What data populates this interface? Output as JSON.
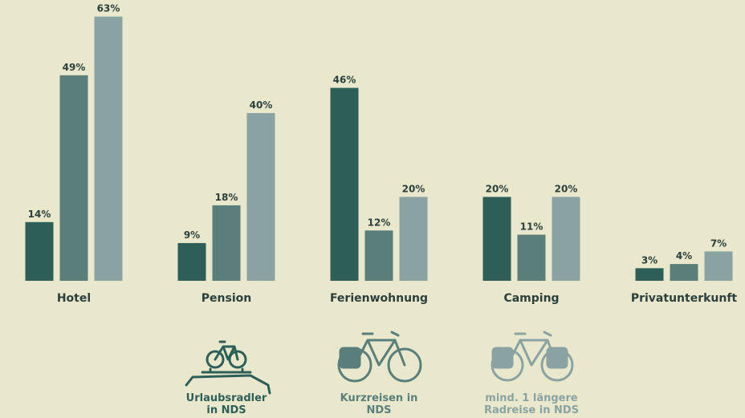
{
  "chart_data": {
    "type": "bar",
    "categories": [
      "Hotel",
      "Pension",
      "Ferienwohnung",
      "Camping",
      "Privatunterkunft"
    ],
    "series": [
      {
        "name": "Urlaubsradler in NDS",
        "color": "#2d5f58",
        "values": [
          14,
          9,
          46,
          20,
          3
        ],
        "value_labels": [
          "14%",
          "9%",
          "46%",
          "20%",
          "3%"
        ]
      },
      {
        "name": "Kurzreisen in NDS",
        "color": "#5a7f7b",
        "values": [
          49,
          18,
          12,
          11,
          4
        ],
        "value_labels": [
          "49%",
          "18%",
          "12%",
          "11%",
          "4%"
        ]
      },
      {
        "name": "mind. 1 längere Radreise in NDS",
        "color": "#8aa3a2",
        "values": [
          63,
          40,
          20,
          20,
          7
        ],
        "value_labels": [
          "63%",
          "40%",
          "20%",
          "20%",
          "7%"
        ]
      }
    ],
    "ylim": [
      0,
      66
    ]
  }
}
